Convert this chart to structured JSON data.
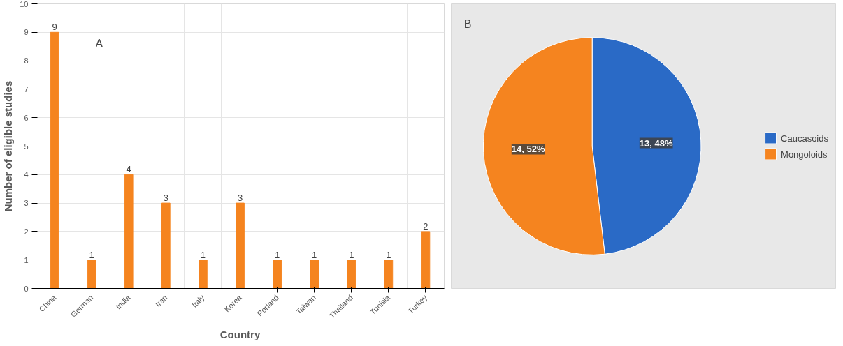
{
  "chart_data": [
    {
      "type": "bar",
      "xlabel": "Country",
      "ylabel": "Number of eligible studies",
      "annotations": [
        "A"
      ],
      "categories": [
        "China",
        "German",
        "India",
        "Iran",
        "Italy",
        "Korea",
        "Porland",
        "Taiwan",
        "Thailand",
        "Tunisia",
        "Turkey"
      ],
      "values": [
        9,
        1,
        4,
        3,
        1,
        3,
        1,
        1,
        1,
        1,
        2
      ],
      "color": "#f5841f",
      "ylim": [
        0,
        10
      ],
      "yticks": [
        0,
        1,
        2,
        3,
        4,
        5,
        6,
        7,
        8,
        9,
        10
      ],
      "grid": true,
      "data_labels": true
    },
    {
      "type": "pie",
      "annotations": [
        "B"
      ],
      "categories": [
        "Caucasoids",
        "Mongoloids"
      ],
      "values": [
        13,
        14
      ],
      "colors": [
        "#2a6ac6",
        "#f5841f"
      ],
      "value_labels": [
        "13, 48%",
        "14, 52%"
      ],
      "legend": "right"
    }
  ]
}
